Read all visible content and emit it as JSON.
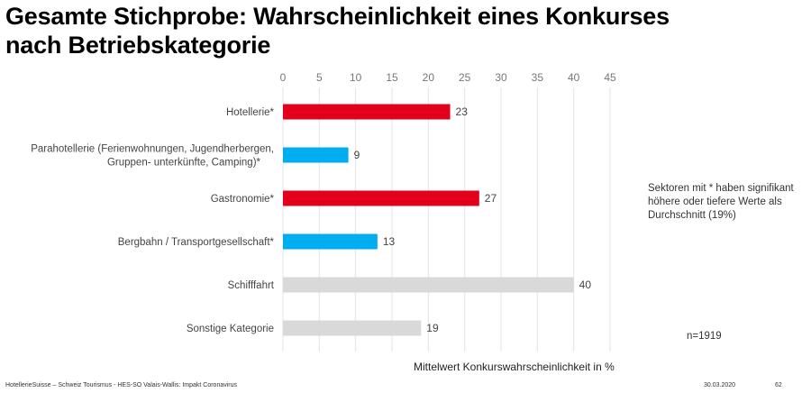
{
  "slide": {
    "title_line1": "Gesamte Stichprobe: Wahrscheinlichkeit eines Konkurses",
    "title_line2": "nach Betriebskategorie",
    "note": "Sektoren mit * haben signifikant höhere oder tiefere Werte als Durchschnitt (19%)",
    "sample_size": "n=1919",
    "footer_source": "HotellerieSuisse – Schweiz Tourismus - HES-SO Valais-Wallis: Impakt Coronavirus",
    "footer_date": "30.03.2020",
    "footer_page": "62"
  },
  "chart_data": {
    "type": "bar",
    "orientation": "horizontal",
    "title": "Gesamte Stichprobe: Wahrscheinlichkeit eines Konkurses nach Betriebskategorie",
    "xlabel": "Mittelwert Konkurswahrscheinlichkeit in %",
    "ylabel": "",
    "xlim": [
      0,
      45
    ],
    "xticks": [
      "0",
      "5",
      "10",
      "15",
      "20",
      "25",
      "30",
      "35",
      "40",
      "45"
    ],
    "xtick_values": [
      0,
      5,
      10,
      15,
      20,
      25,
      30,
      35,
      40,
      45
    ],
    "grid": true,
    "axis_position": "top",
    "categories": [
      [
        "Hotellerie*"
      ],
      [
        "Parahotellerie (Ferienwohnungen, Jugendherbergen,",
        "Gruppen- unterkünfte, Camping)*"
      ],
      [
        "Gastronomie*"
      ],
      [
        "Bergbahn / Transportgesellschaft*"
      ],
      [
        "Schifffahrt"
      ],
      [
        "Sonstige Kategorie"
      ]
    ],
    "values": [
      23,
      9,
      27,
      13,
      40,
      19
    ],
    "value_labels": [
      "23",
      "9",
      "27",
      "13",
      "40",
      "19"
    ],
    "bar_colors": [
      "#e2001a",
      "#00aeef",
      "#e2001a",
      "#00aeef",
      "#d9d9d9",
      "#d9d9d9"
    ],
    "grid_color": "#e3e3e3",
    "label_color": "#444444"
  }
}
